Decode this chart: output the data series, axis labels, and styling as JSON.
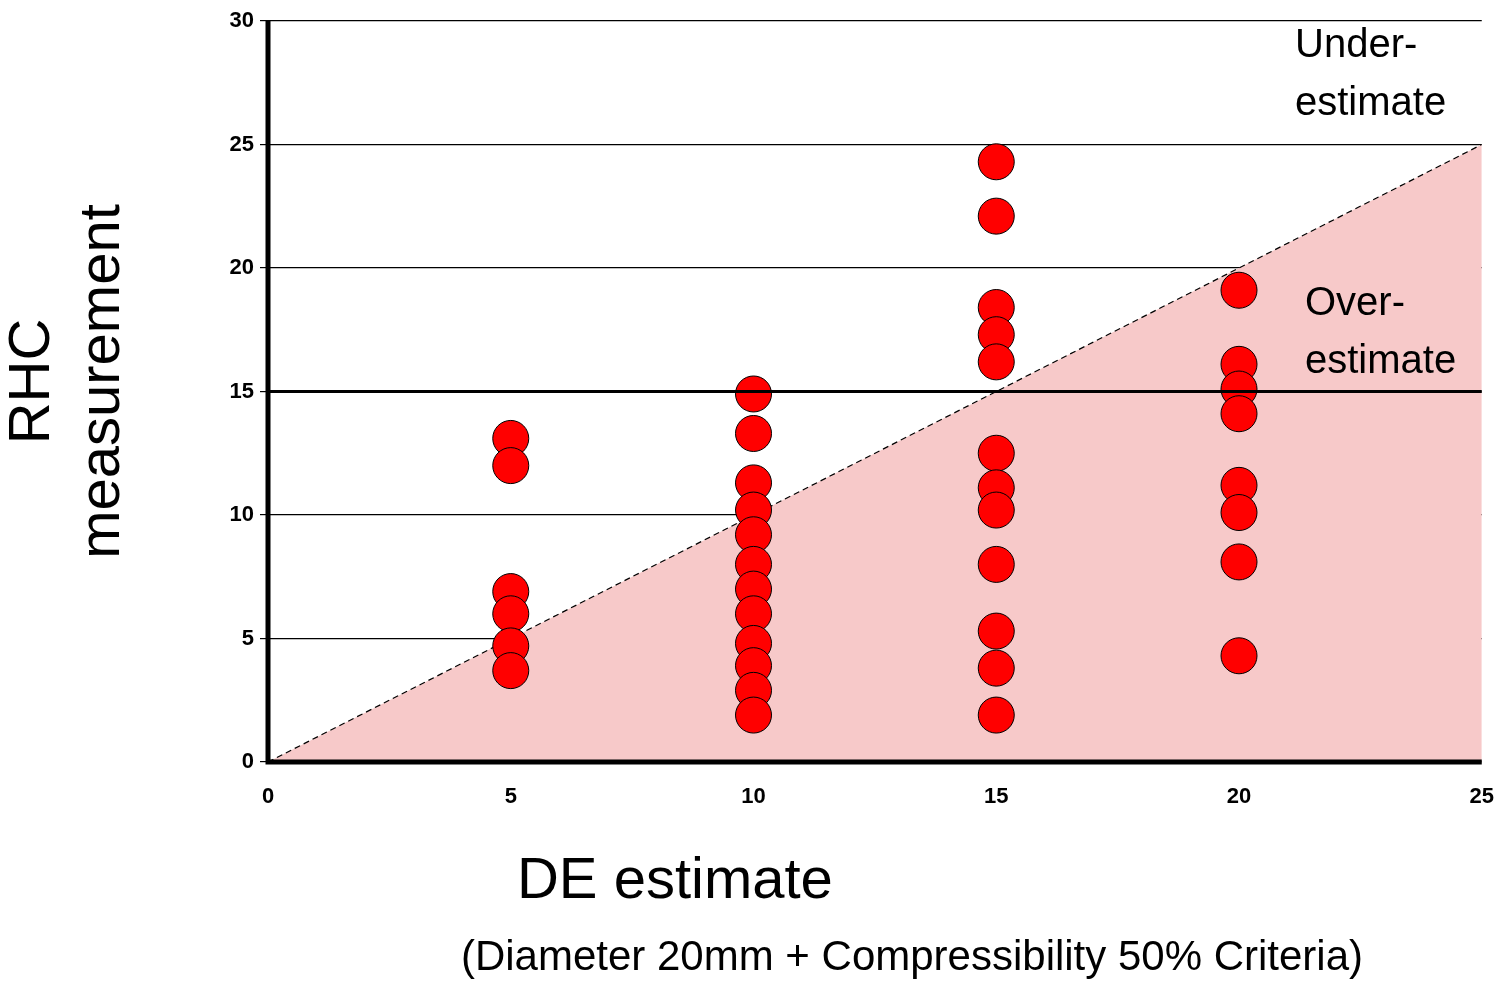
{
  "chart_data": {
    "type": "scatter",
    "xlabel": "DE estimate",
    "ylabel": "RHC measurement",
    "xlim": [
      0,
      25
    ],
    "xticks": [
      0,
      5,
      10,
      15,
      20,
      25
    ],
    "ylim": [
      0,
      30
    ],
    "yticks": [
      0,
      5,
      10,
      15,
      20,
      25,
      30
    ],
    "grid": "y",
    "legend": false,
    "series": [
      {
        "type": "area",
        "color": "#f7c9c9",
        "line_style": "dashed",
        "marker": "none",
        "x": [
          0,
          25
        ],
        "values": [
          0,
          25
        ]
      },
      {
        "color": "#ff0000",
        "marker": "circle",
        "x": [
          5,
          5,
          5,
          5,
          5,
          5,
          10,
          10,
          10,
          10,
          10,
          10,
          10,
          10,
          10,
          10,
          10,
          10,
          15,
          15,
          15,
          15,
          15,
          15,
          15,
          15,
          15,
          15,
          15,
          15,
          20,
          20,
          20,
          20,
          20,
          20,
          20,
          20
        ],
        "values": [
          13.1,
          12.0,
          6.9,
          6.0,
          4.7,
          3.7,
          14.9,
          13.3,
          11.3,
          10.2,
          9.2,
          8.0,
          7.0,
          6.0,
          4.8,
          3.9,
          2.9,
          1.9,
          24.3,
          22.1,
          18.4,
          17.3,
          16.2,
          12.5,
          11.1,
          10.2,
          8.0,
          5.3,
          3.8,
          1.9,
          19.1,
          16.1,
          15.1,
          14.1,
          11.2,
          10.1,
          8.1,
          4.3
        ]
      }
    ],
    "ref_lines": [
      {
        "axis": "y",
        "value": 15,
        "color": "#000000"
      }
    ],
    "annotations": [
      "Under-\nestimate",
      "Over-\nestimate",
      "(Diameter 20mm + Compressibility 50% Criteria)"
    ]
  }
}
